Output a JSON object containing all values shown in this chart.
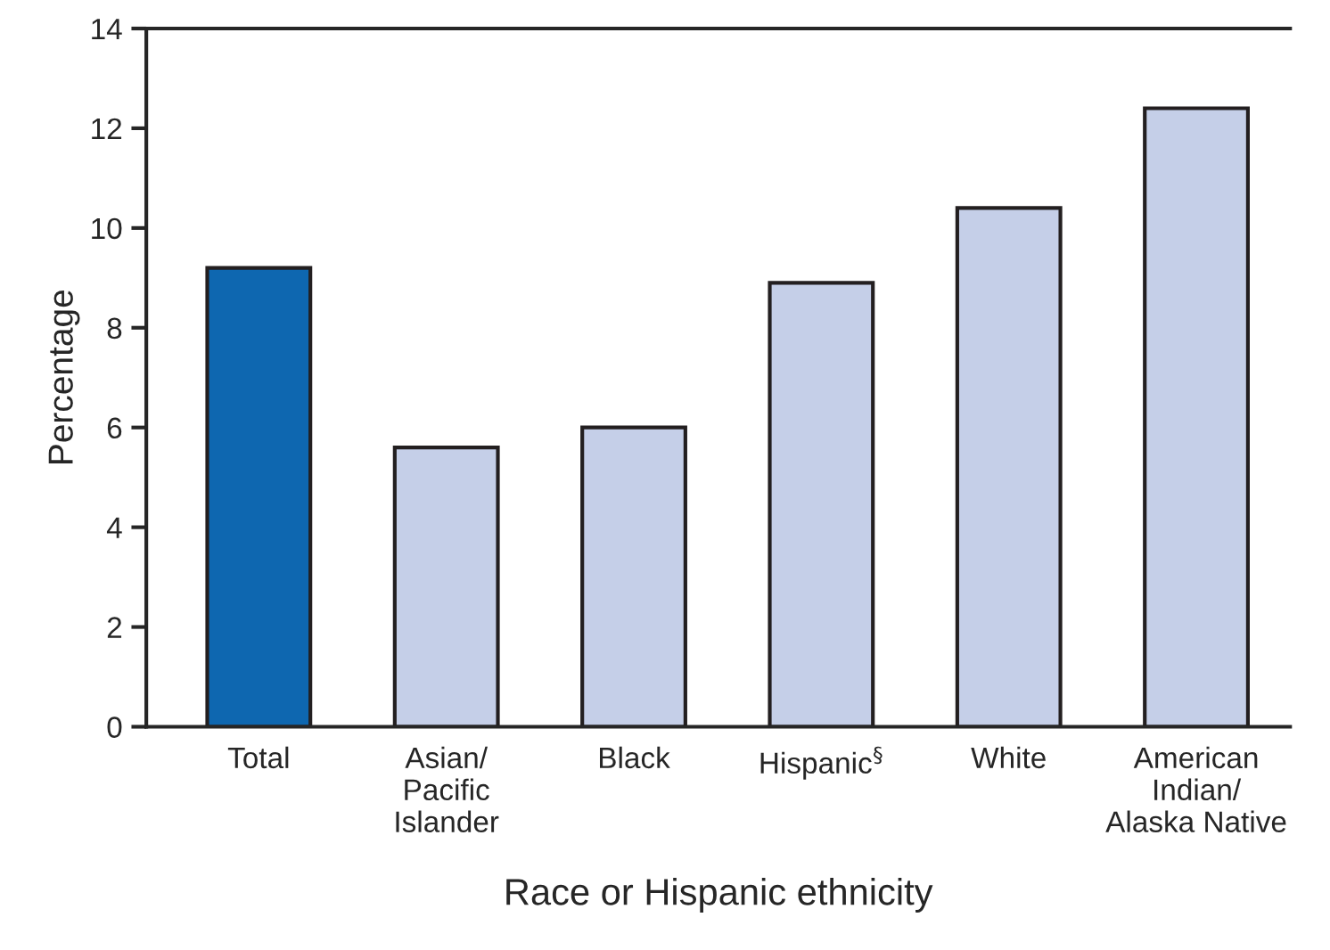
{
  "chart_data": {
    "type": "bar",
    "xlabel": "Race or Hispanic ethnicity",
    "ylabel": "Percentage",
    "categories": [
      "Total",
      "Asian/\nPacific\nIslander",
      "Black",
      "Hispanic$^{§}$",
      "White",
      "American\nIndian/\nAlaska Native"
    ],
    "values": [
      9.2,
      5.6,
      6.0,
      8.9,
      10.4,
      12.4
    ],
    "colors": [
      "#0e67b0",
      "#c5cfe8",
      "#c5cfe8",
      "#c5cfe8",
      "#c5cfe8",
      "#c5cfe8"
    ],
    "ylim": [
      0,
      14
    ],
    "yticks": [
      0,
      2,
      4,
      6,
      8,
      10,
      12,
      14
    ],
    "grid": false,
    "legend": false
  }
}
